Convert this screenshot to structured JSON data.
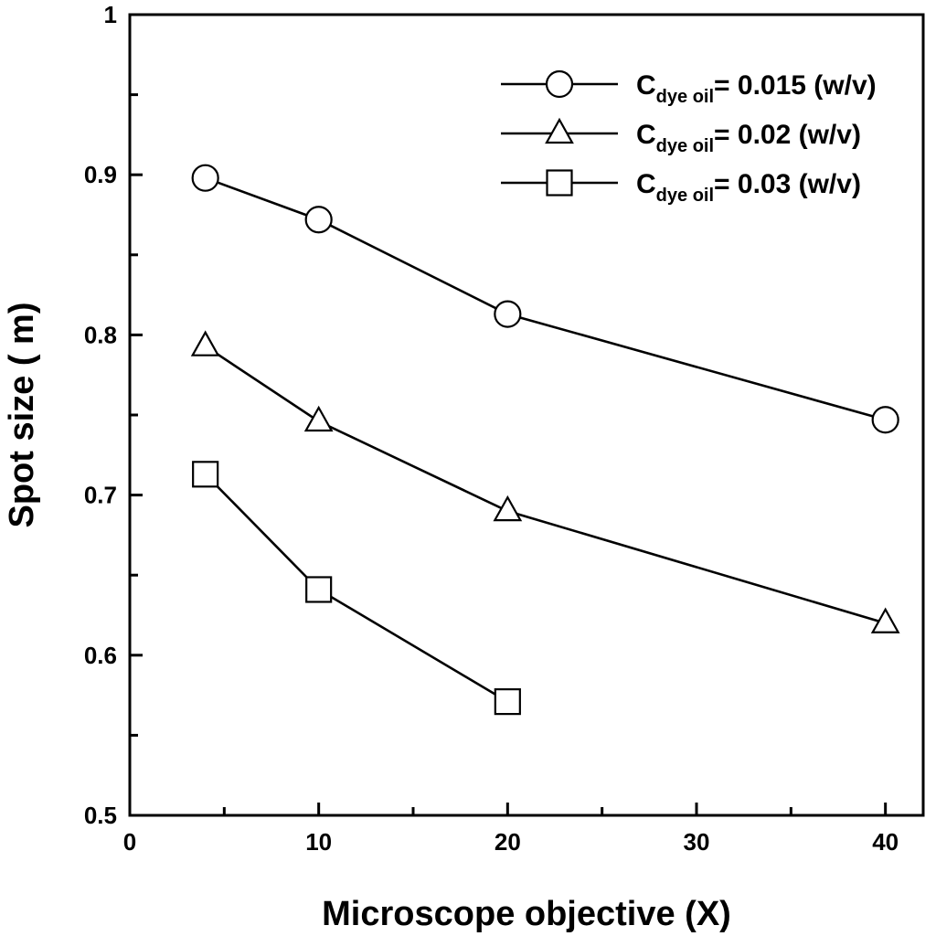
{
  "chart_data": {
    "type": "line",
    "title": "",
    "xlabel": "Microscope objective (X)",
    "ylabel": "Spot size (  m)",
    "xlim": [
      0,
      42
    ],
    "ylim": [
      0.5,
      1.0
    ],
    "x_ticks": [
      0,
      10,
      20,
      30,
      40
    ],
    "x_tick_labels": [
      "0",
      "10",
      "20",
      "30",
      "40"
    ],
    "y_ticks": [
      0.5,
      0.6,
      0.7,
      0.8,
      0.9,
      1.0
    ],
    "y_tick_labels": [
      "0.5",
      "0.6",
      "0.7",
      "0.8",
      "0.9",
      "1"
    ],
    "grid": false,
    "legend_position": "top-right",
    "series": [
      {
        "name": "Cdye oil = 0.015 (w/v)",
        "legend_main": "C",
        "legend_sub": "dye oil",
        "legend_rest": "= 0.015 (w/v)",
        "marker": "circle",
        "x": [
          4,
          10,
          20,
          40
        ],
        "y": [
          0.898,
          0.872,
          0.813,
          0.747
        ]
      },
      {
        "name": "Cdye oil = 0.02 (w/v)",
        "legend_main": "C",
        "legend_sub": "dye oil",
        "legend_rest": "= 0.02 (w/v)",
        "marker": "triangle",
        "x": [
          4,
          10,
          20,
          40
        ],
        "y": [
          0.793,
          0.746,
          0.69,
          0.62
        ]
      },
      {
        "name": "Cdye oil = 0.03 (w/v)",
        "legend_main": "C",
        "legend_sub": "dye oil",
        "legend_rest": "= 0.03 (w/v)",
        "marker": "square",
        "x": [
          4,
          10,
          20
        ],
        "y": [
          0.713,
          0.641,
          0.571
        ]
      }
    ]
  }
}
